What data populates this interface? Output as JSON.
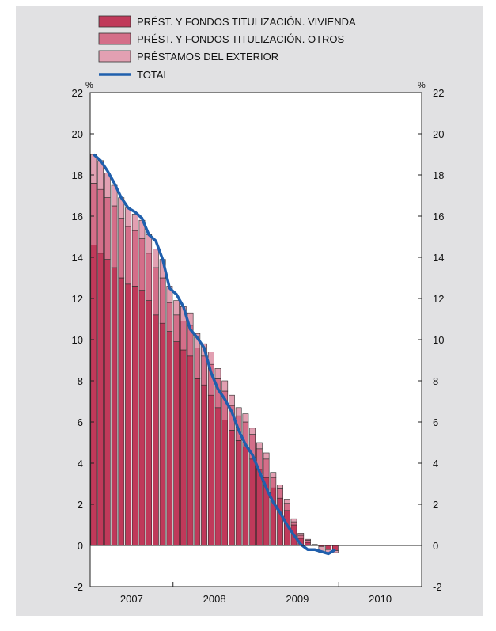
{
  "colors": {
    "background": "#e1e1e3",
    "plot_bg": "#ffffff",
    "vivienda": "#c0395a",
    "otros": "#d46e89",
    "exterior": "#e2a0b2",
    "total": "#1f5fad"
  },
  "chart_data": {
    "type": "bar",
    "subtype": "stacked-bar-with-line",
    "ylim": [
      -2,
      22
    ],
    "yticks": [
      "-2",
      "0",
      "2",
      "4",
      "6",
      "8",
      "10",
      "12",
      "14",
      "16",
      "18",
      "20",
      "22"
    ],
    "unit_left": "%",
    "unit_right": "%",
    "legend_position": "top",
    "grid": false,
    "x_year_labels": [
      "2007",
      "2008",
      "2009",
      "2010"
    ],
    "months": [
      "2007-01",
      "2007-02",
      "2007-03",
      "2007-04",
      "2007-05",
      "2007-06",
      "2007-07",
      "2007-08",
      "2007-09",
      "2007-10",
      "2007-11",
      "2007-12",
      "2008-01",
      "2008-02",
      "2008-03",
      "2008-04",
      "2008-05",
      "2008-06",
      "2008-07",
      "2008-08",
      "2008-09",
      "2008-10",
      "2008-11",
      "2008-12",
      "2009-01",
      "2009-02",
      "2009-03",
      "2009-04",
      "2009-05",
      "2009-06",
      "2009-07",
      "2009-08",
      "2009-09",
      "2009-10",
      "2009-11",
      "2009-12"
    ],
    "series": [
      {
        "name": "PRÉST. Y FONDOS TITULIZACIÓN. VIVIENDA",
        "kind": "bar",
        "color_key": "vivienda",
        "values": [
          14.6,
          14.2,
          13.9,
          13.5,
          13.0,
          12.7,
          12.6,
          12.4,
          11.9,
          11.2,
          10.8,
          10.4,
          9.9,
          9.5,
          9.2,
          8.1,
          7.8,
          7.3,
          6.7,
          6.1,
          5.6,
          5.1,
          4.8,
          4.2,
          3.7,
          3.3,
          2.8,
          2.3,
          1.7,
          1.0,
          0.35,
          0.15,
          0.05,
          -0.05,
          -0.2,
          -0.25
        ]
      },
      {
        "name": "PRÉST. Y FONDOS TITULIZACIÓN. OTROS",
        "kind": "bar",
        "color_key": "otros",
        "values": [
          3.0,
          3.1,
          3.0,
          3.0,
          2.9,
          2.8,
          2.7,
          2.5,
          2.3,
          2.3,
          2.2,
          1.4,
          1.3,
          1.4,
          1.5,
          1.5,
          1.4,
          1.5,
          1.4,
          1.4,
          1.2,
          1.2,
          1.2,
          1.2,
          1.0,
          0.9,
          0.5,
          0.45,
          0.35,
          0.15,
          0.15,
          0.1,
          0.0,
          0.0,
          0.0,
          0.0
        ]
      },
      {
        "name": "PRÉSTAMOS DEL EXTERIOR",
        "kind": "bar",
        "color_key": "exterior",
        "values": [
          1.4,
          1.4,
          1.2,
          1.0,
          1.0,
          0.9,
          0.8,
          0.9,
          0.9,
          0.9,
          0.9,
          0.8,
          0.7,
          0.7,
          0.6,
          0.7,
          0.6,
          0.6,
          0.5,
          0.5,
          0.5,
          0.4,
          0.4,
          0.3,
          0.3,
          0.3,
          0.25,
          0.2,
          0.2,
          0.15,
          0.1,
          0.05,
          0.0,
          -0.3,
          -0.2,
          -0.1
        ]
      },
      {
        "name": "TOTAL",
        "kind": "line",
        "color_key": "total",
        "values": [
          19.0,
          18.7,
          18.2,
          17.6,
          16.9,
          16.4,
          16.2,
          15.9,
          15.1,
          14.8,
          13.9,
          12.5,
          12.2,
          11.6,
          10.5,
          10.1,
          9.6,
          8.4,
          7.6,
          7.1,
          6.5,
          5.6,
          4.9,
          4.4,
          3.6,
          2.8,
          2.1,
          1.6,
          1.0,
          0.5,
          0.05,
          -0.2,
          -0.2,
          -0.3,
          -0.4,
          -0.2
        ]
      }
    ]
  }
}
